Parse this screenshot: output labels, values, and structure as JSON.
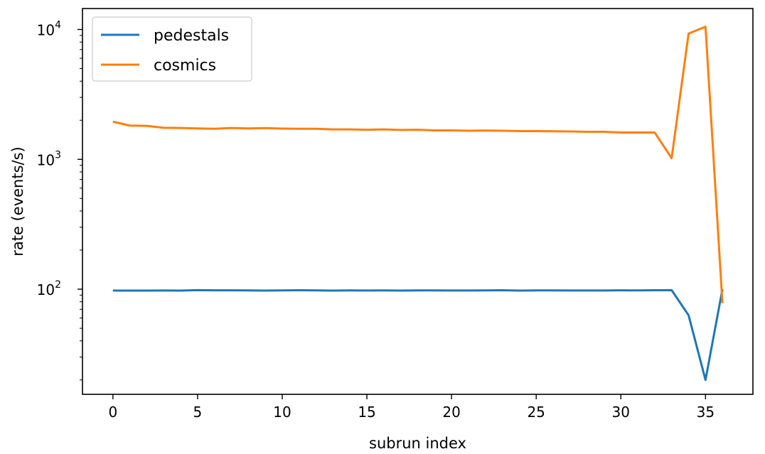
{
  "chart_data": {
    "type": "line",
    "title": "",
    "xlabel": "subrun index",
    "ylabel": "rate (events/s)",
    "yscale": "log",
    "xlim": [
      -1.8,
      37.8
    ],
    "ylim": [
      15.5,
      14500
    ],
    "x_ticks": [
      0,
      5,
      10,
      15,
      20,
      25,
      30,
      35
    ],
    "y_ticks": [
      {
        "value": 100,
        "base": "10",
        "exp": "2"
      },
      {
        "value": 1000,
        "base": "10",
        "exp": "3"
      },
      {
        "value": 10000,
        "base": "10",
        "exp": "4"
      }
    ],
    "legend_position": "top-left",
    "grid": false,
    "x": [
      0,
      1,
      2,
      3,
      4,
      5,
      6,
      7,
      8,
      9,
      10,
      11,
      12,
      13,
      14,
      15,
      16,
      17,
      18,
      19,
      20,
      21,
      22,
      23,
      24,
      25,
      26,
      27,
      28,
      29,
      30,
      31,
      32,
      33,
      34,
      35,
      36
    ],
    "series": [
      {
        "name": "pedestals",
        "color": "#1f77b4",
        "values": [
          97.5,
          97.6,
          97.5,
          97.7,
          97.6,
          98.3,
          98.0,
          98.0,
          97.9,
          97.6,
          97.9,
          98.1,
          97.9,
          97.6,
          97.9,
          97.7,
          97.8,
          97.6,
          97.9,
          97.8,
          97.7,
          97.7,
          97.9,
          98.2,
          97.6,
          97.9,
          97.8,
          97.7,
          97.7,
          97.7,
          98.0,
          97.8,
          98.1,
          98.3,
          63.0,
          20.0,
          100.0
        ]
      },
      {
        "name": "cosmics",
        "color": "#ff7f0e",
        "values": [
          1950,
          1820,
          1810,
          1750,
          1745,
          1730,
          1720,
          1745,
          1730,
          1740,
          1725,
          1720,
          1720,
          1700,
          1700,
          1690,
          1700,
          1685,
          1690,
          1670,
          1670,
          1660,
          1665,
          1660,
          1650,
          1650,
          1645,
          1640,
          1630,
          1630,
          1610,
          1610,
          1610,
          1020,
          9300,
          10500,
          78
        ]
      }
    ]
  }
}
